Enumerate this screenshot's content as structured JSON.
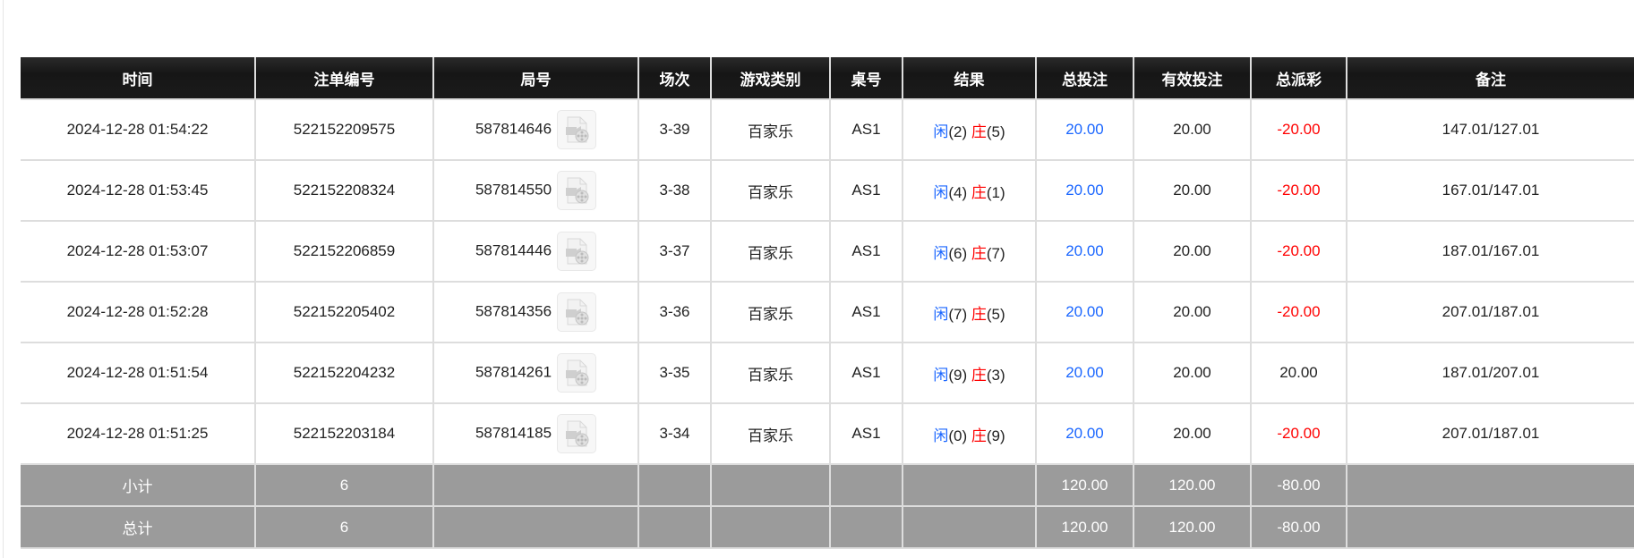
{
  "colors": {
    "header_bg": "#1b1b1b",
    "summary_bg": "#9b9b9b",
    "player": "#1a66ff",
    "banker": "#ff0000",
    "negative": "#ff0000",
    "bet": "#1a66ff"
  },
  "headers": [
    "时间",
    "注单编号",
    "局号",
    "场次",
    "游戏类别",
    "桌号",
    "结果",
    "总投注",
    "有效投注",
    "总派彩",
    "备注"
  ],
  "rows": [
    {
      "time": "2024-12-28 01:54:22",
      "bet_id": "522152209575",
      "round": "587814646",
      "session": "3-39",
      "game": "百家乐",
      "table": "AS1",
      "player_label": "闲",
      "player": "(2)",
      "banker_label": "庄",
      "banker": "(5)",
      "total_bet": "20.00",
      "valid_bet": "20.00",
      "payout": "-20.00",
      "payout_negative": true,
      "remark": "147.01/127.01",
      "icon": "video-file-icon"
    },
    {
      "time": "2024-12-28 01:53:45",
      "bet_id": "522152208324",
      "round": "587814550",
      "session": "3-38",
      "game": "百家乐",
      "table": "AS1",
      "player_label": "闲",
      "player": "(4)",
      "banker_label": "庄",
      "banker": "(1)",
      "total_bet": "20.00",
      "valid_bet": "20.00",
      "payout": "-20.00",
      "payout_negative": true,
      "remark": "167.01/147.01",
      "icon": "video-file-icon"
    },
    {
      "time": "2024-12-28 01:53:07",
      "bet_id": "522152206859",
      "round": "587814446",
      "session": "3-37",
      "game": "百家乐",
      "table": "AS1",
      "player_label": "闲",
      "player": "(6)",
      "banker_label": "庄",
      "banker": "(7)",
      "total_bet": "20.00",
      "valid_bet": "20.00",
      "payout": "-20.00",
      "payout_negative": true,
      "remark": "187.01/167.01",
      "icon": "video-file-icon"
    },
    {
      "time": "2024-12-28 01:52:28",
      "bet_id": "522152205402",
      "round": "587814356",
      "session": "3-36",
      "game": "百家乐",
      "table": "AS1",
      "player_label": "闲",
      "player": "(7)",
      "banker_label": "庄",
      "banker": "(5)",
      "total_bet": "20.00",
      "valid_bet": "20.00",
      "payout": "-20.00",
      "payout_negative": true,
      "remark": "207.01/187.01",
      "icon": "video-file-icon"
    },
    {
      "time": "2024-12-28 01:51:54",
      "bet_id": "522152204232",
      "round": "587814261",
      "session": "3-35",
      "game": "百家乐",
      "table": "AS1",
      "player_label": "闲",
      "player": "(9)",
      "banker_label": "庄",
      "banker": "(3)",
      "total_bet": "20.00",
      "valid_bet": "20.00",
      "payout": "20.00",
      "payout_negative": false,
      "remark": "187.01/207.01",
      "icon": "video-file-icon"
    },
    {
      "time": "2024-12-28 01:51:25",
      "bet_id": "522152203184",
      "round": "587814185",
      "session": "3-34",
      "game": "百家乐",
      "table": "AS1",
      "player_label": "闲",
      "player": "(0)",
      "banker_label": "庄",
      "banker": "(9)",
      "total_bet": "20.00",
      "valid_bet": "20.00",
      "payout": "-20.00",
      "payout_negative": true,
      "remark": "207.01/187.01",
      "icon": "video-file-icon"
    }
  ],
  "summary": [
    {
      "label": "小计",
      "count": "6",
      "total_bet": "120.00",
      "valid_bet": "120.00",
      "payout": "-80.00"
    },
    {
      "label": "总计",
      "count": "6",
      "total_bet": "120.00",
      "valid_bet": "120.00",
      "payout": "-80.00"
    }
  ]
}
